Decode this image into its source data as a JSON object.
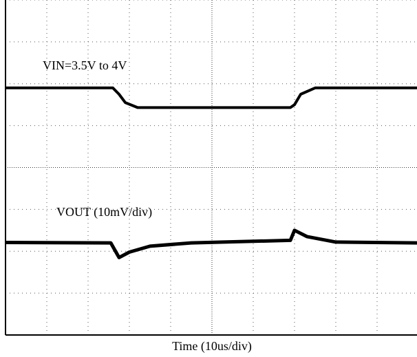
{
  "chart_data": {
    "type": "line",
    "x_label": "Time (10us/div)",
    "xlim": [
      0,
      10
    ],
    "ylim": [
      0,
      8
    ],
    "xticks": [
      0,
      1,
      2,
      3,
      4,
      5,
      6,
      7,
      8,
      9,
      10
    ],
    "yticks": [
      0,
      1,
      2,
      3,
      4,
      5,
      6,
      7,
      8
    ],
    "grid": true,
    "series": [
      {
        "name": "VIN=3.5V to 4V",
        "color": "#000000",
        "x": [
          0,
          2.6,
          2.75,
          2.9,
          3.2,
          6.9,
          7.0,
          7.15,
          7.5,
          10
        ],
        "values": [
          5.9,
          5.9,
          5.75,
          5.55,
          5.43,
          5.43,
          5.5,
          5.75,
          5.9,
          5.9
        ]
      },
      {
        "name": "VOUT (10mV/div)",
        "color": "#000000",
        "x": [
          0,
          2.55,
          2.75,
          3.0,
          3.5,
          4.5,
          6.9,
          7.0,
          7.3,
          8.0,
          10
        ],
        "values": [
          2.21,
          2.2,
          1.85,
          1.98,
          2.12,
          2.2,
          2.26,
          2.5,
          2.35,
          2.22,
          2.2
        ]
      }
    ]
  }
}
